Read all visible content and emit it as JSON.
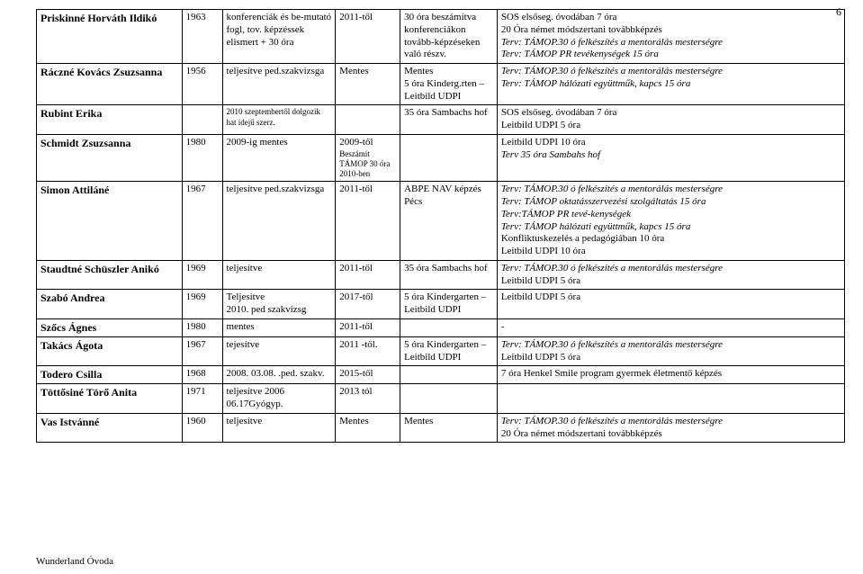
{
  "page_number": "6",
  "footer": "Wunderland Óvoda",
  "rows": [
    {
      "name": "Priskinné Horváth Ildikó",
      "c2": "1963",
      "c3": "konferenciák és be-mutató fogl, tov. képzéssek elismert + 30 óra",
      "c4": "2011-től",
      "c5": "30 óra beszámítva konferenciákon tovább-képzéseken való részv.",
      "c6_lines": [
        {
          "t": "SOS elsőseg. óvodában 7 óra"
        },
        {
          "t": "20 Óra német módszertani továbbképzés"
        },
        {
          "t": "Terv: TÁMOP.30 ó felkészítés a mentorálás mesterségre",
          "i": true
        },
        {
          "t": "Terv: TÁMOP PR tevékenységek 15 óra",
          "i": true
        }
      ]
    },
    {
      "name": "Ráczné Kovács Zsuzsanna",
      "c2": "1956",
      "c3": "teljesítve ped.szakvizsga",
      "c4": "Mentes",
      "c5": "Mentes\n5 óra Kinderg.rten –Leitbild UDPI",
      "c6_lines": [
        {
          "t": "Terv: TÁMOP.30 ó felkészítés a mentorálás mesterségre",
          "i": true
        },
        {
          "t": "Terv: TÁMOP hálózati együttműk, kapcs 15 óra",
          "i": true
        }
      ]
    },
    {
      "name": "Rubint Erika",
      "c2": "",
      "c3": "2010 szeptembertől dolgozik hat idejű szerz.",
      "c4": "",
      "c5": "35 óra Sambachs hof",
      "c6_lines": [
        {
          "t": "SOS elsőseg. óvodában 7 óra"
        },
        {
          "t": "Leitbild UDPI 5 óra"
        }
      ]
    },
    {
      "name": "Schmidt Zsuzsanna",
      "c2": "1980",
      "c3": "2009-ig mentes",
      "c4": "2009-től\nBeszámít TÁMOP 30 óra 2010-ben",
      "c5": "",
      "c6_lines": [
        {
          "t": "Leitbild UDPI 10 óra"
        },
        {
          "t": "Terv 35 óra Sambahs hof",
          "i": true
        }
      ]
    },
    {
      "name": "Simon Attiláné",
      "c2": "1967",
      "c3": "teljesítve ped.szakvizsga",
      "c4": "2011-től",
      "c5": "ABPE NAV képzés Pécs",
      "c6_lines": [
        {
          "t": "Terv: TÁMOP.30 ó felkészítés a mentorálás mesterségre",
          "i": true
        },
        {
          "t": "Terv: TÁMOP oktatásszervezési szolgáltatás 15 óra",
          "i": true
        },
        {
          "t": "Terv:TÁMOP PR tevé-kenységek",
          "i": true
        },
        {
          "t": "Terv: TÁMOP hálózati együttműk, kapcs 15 óra",
          "i": true
        },
        {
          "t": "Konfliktuskezelés a pedagógiában 10 óra"
        },
        {
          "t": "Leitbild UDPI 10 óra"
        }
      ]
    },
    {
      "name": "Staudtné Schüszler Anikó",
      "c2": "1969",
      "c3": "teljesítve",
      "c4": "2011-től",
      "c5": "35 óra Sambachs hof",
      "c6_lines": [
        {
          "t": "Terv: TÁMOP.30 ó felkészítés a mentorálás mesterségre",
          "i": true
        },
        {
          "t": "Leitbild UDPI 5 óra"
        }
      ]
    },
    {
      "name": "Szabó Andrea",
      "c2": "1969",
      "c3": "Teljesítve\n2010. ped szakvizsg",
      "c4": "2017-től",
      "c5": "5 óra Kindergarten – Leitbild UDPI",
      "c6_lines": [
        {
          "t": "Leitbild UDPI 5 óra"
        }
      ]
    },
    {
      "name": "Szőcs Ágnes",
      "c2": "1980",
      "c3": "mentes",
      "c4": "2011-től",
      "c5": "",
      "c6_lines": [
        {
          "t": "-"
        }
      ]
    },
    {
      "name": "Takács Ágota",
      "c2": "1967",
      "c3": "tejesítve",
      "c4": "2011 -től.",
      "c5": "5 óra Kindergarten – Leitbild UDPI",
      "c6_lines": [
        {
          "t": "Terv: TÁMOP.30 ó felkészítés a mentorálás mesterségre",
          "i": true
        },
        {
          "t": "Leitbild UDPI 5 óra"
        }
      ]
    },
    {
      "name": "Todero Csilla",
      "c2": "1968",
      "c3": "2008. 03.08. .ped. szakv.",
      "c4": "2015-től",
      "c5": "",
      "c6_lines": [
        {
          "t": " 7 óra Henkel Smile program gyermek életmentő képzés"
        }
      ]
    },
    {
      "name": "Töttősiné Törő Anita",
      "c2": "1971",
      "c3": "teljesítve 2006 06.17Gyógyp.",
      "c4": "2013 tól",
      "c5": "",
      "c6_lines": []
    },
    {
      "name": "Vas Istvánné",
      "c2": "1960",
      "c3": "teljesítve",
      "c4": "Mentes",
      "c5": "Mentes",
      "c6_lines": [
        {
          "t": "Terv: TÁMOP.30 ó felkészítés a mentorálás mesterségre",
          "i": true
        },
        {
          "t": "20 Óra német módszertani továbbképzés"
        }
      ]
    }
  ]
}
